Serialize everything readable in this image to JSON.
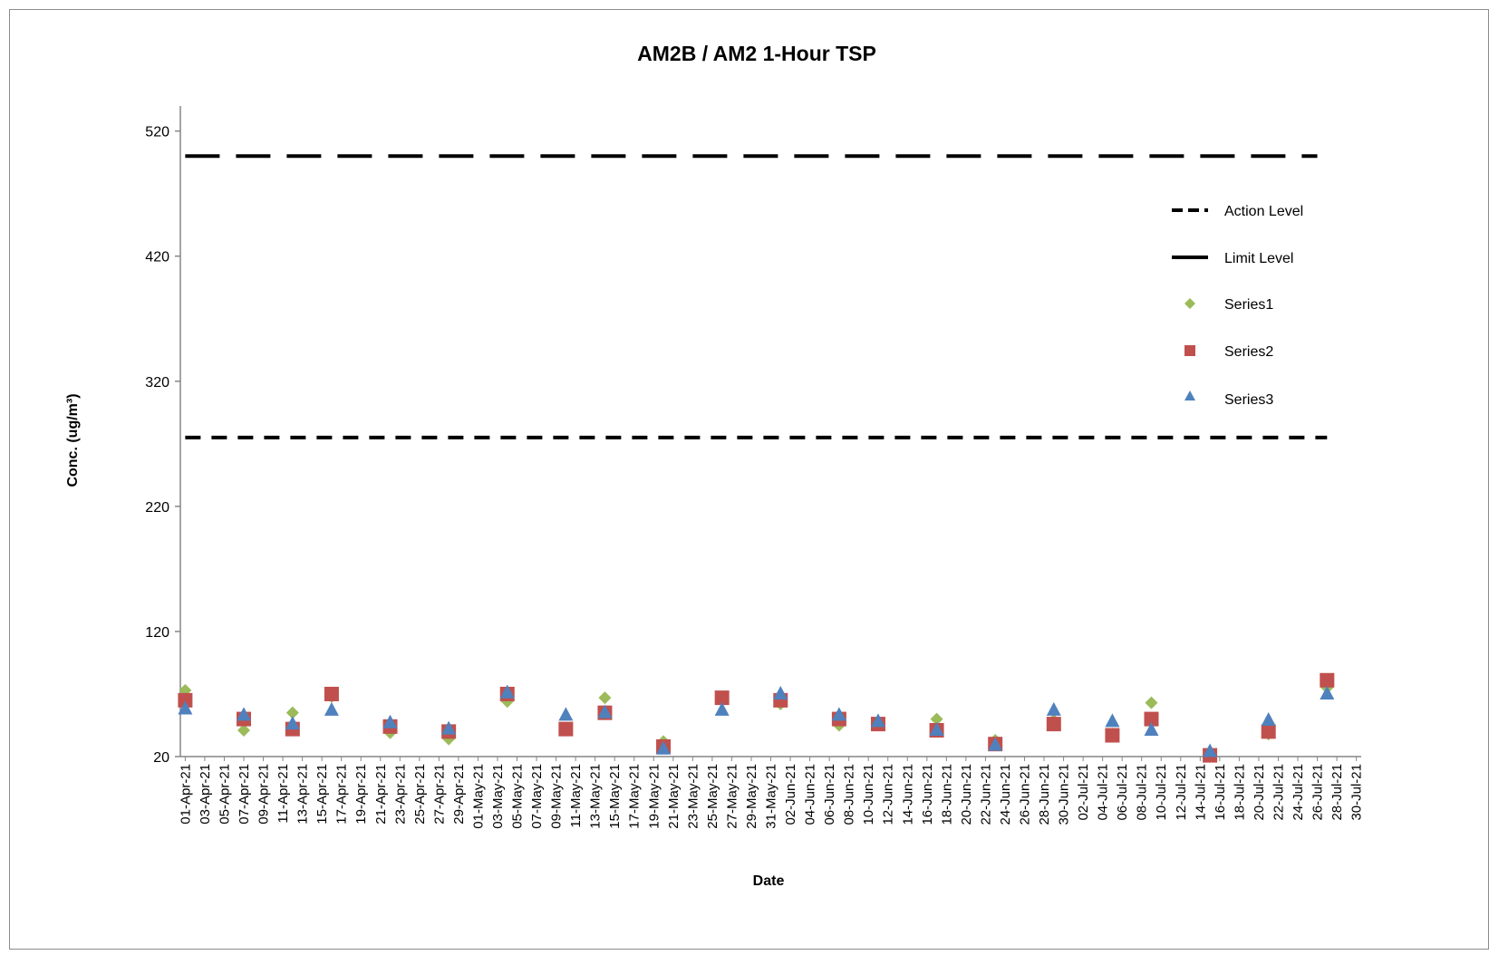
{
  "chart_data": {
    "type": "scatter",
    "title": "AM2B / AM2 1-Hour TSP",
    "xlabel": "Date",
    "ylabel": "Conc. (ug/m³)",
    "ylim": [
      20,
      540
    ],
    "yticks": [
      20,
      120,
      220,
      320,
      420,
      520
    ],
    "grid": false,
    "legend_position": "right",
    "x_tick_labels": [
      "01-Apr-21",
      "03-Apr-21",
      "05-Apr-21",
      "07-Apr-21",
      "09-Apr-21",
      "11-Apr-21",
      "13-Apr-21",
      "15-Apr-21",
      "17-Apr-21",
      "19-Apr-21",
      "21-Apr-21",
      "23-Apr-21",
      "25-Apr-21",
      "27-Apr-21",
      "29-Apr-21",
      "01-May-21",
      "03-May-21",
      "05-May-21",
      "07-May-21",
      "09-May-21",
      "11-May-21",
      "13-May-21",
      "15-May-21",
      "17-May-21",
      "19-May-21",
      "21-May-21",
      "23-May-21",
      "25-May-21",
      "27-May-21",
      "29-May-21",
      "31-May-21",
      "02-Jun-21",
      "04-Jun-21",
      "06-Jun-21",
      "08-Jun-21",
      "10-Jun-21",
      "12-Jun-21",
      "14-Jun-21",
      "16-Jun-21",
      "18-Jun-21",
      "20-Jun-21",
      "22-Jun-21",
      "24-Jun-21",
      "26-Jun-21",
      "28-Jun-21",
      "30-Jun-21",
      "02-Jul-21",
      "04-Jul-21",
      "06-Jul-21",
      "08-Jul-21",
      "10-Jul-21",
      "12-Jul-21",
      "14-Jul-21",
      "16-Jul-21",
      "18-Jul-21",
      "20-Jul-21",
      "22-Jul-21",
      "24-Jul-21",
      "26-Jul-21",
      "28-Jul-21",
      "30-Jul-21"
    ],
    "x_range": [
      "2021-04-01",
      "2021-07-31"
    ],
    "action_level": {
      "name": "Action Level",
      "y": 275,
      "from": "2021-04-01",
      "to": "2021-07-27",
      "color": "#000000"
    },
    "limit_level": {
      "name": "Limit Level",
      "y": 500,
      "from": "2021-04-01",
      "to": "2021-07-26",
      "color": "#000000"
    },
    "series": [
      {
        "name": "Series1",
        "marker": "diamond",
        "color": "#9bbb59",
        "x": [
          "2021-04-01",
          "2021-04-07",
          "2021-04-12",
          "2021-04-16",
          "2021-04-22",
          "2021-04-28",
          "2021-05-04",
          "2021-05-10",
          "2021-05-14",
          "2021-05-20",
          "2021-05-26",
          "2021-06-01",
          "2021-06-07",
          "2021-06-11",
          "2021-06-17",
          "2021-06-23",
          "2021-06-29",
          "2021-07-05",
          "2021-07-09",
          "2021-07-15",
          "2021-07-21",
          "2021-07-27"
        ],
        "values": [
          73,
          41,
          55,
          68,
          39,
          34,
          64,
          41,
          67,
          32,
          67,
          62,
          45,
          48,
          50,
          33,
          49,
          38,
          63,
          21,
          38,
          75
        ]
      },
      {
        "name": "Series2",
        "marker": "square",
        "color": "#c0504d",
        "x": [
          "2021-04-01",
          "2021-04-07",
          "2021-04-12",
          "2021-04-16",
          "2021-04-22",
          "2021-04-28",
          "2021-05-04",
          "2021-05-10",
          "2021-05-14",
          "2021-05-20",
          "2021-05-26",
          "2021-06-01",
          "2021-06-07",
          "2021-06-11",
          "2021-06-17",
          "2021-06-23",
          "2021-06-29",
          "2021-07-05",
          "2021-07-09",
          "2021-07-15",
          "2021-07-21",
          "2021-07-27"
        ],
        "values": [
          65,
          50,
          42,
          70,
          44,
          40,
          70,
          42,
          55,
          28,
          67,
          65,
          50,
          46,
          41,
          30,
          46,
          37,
          50,
          21,
          40,
          81
        ]
      },
      {
        "name": "Series3",
        "marker": "triangle",
        "color": "#4f81bd",
        "x": [
          "2021-04-01",
          "2021-04-07",
          "2021-04-12",
          "2021-04-16",
          "2021-04-22",
          "2021-04-28",
          "2021-05-04",
          "2021-05-10",
          "2021-05-14",
          "2021-05-20",
          "2021-05-26",
          "2021-06-01",
          "2021-06-07",
          "2021-06-11",
          "2021-06-17",
          "2021-06-23",
          "2021-06-29",
          "2021-07-05",
          "2021-07-09",
          "2021-07-15",
          "2021-07-21",
          "2021-07-27"
        ],
        "values": [
          58,
          53,
          46,
          57,
          47,
          42,
          71,
          53,
          55,
          26,
          57,
          70,
          53,
          48,
          41,
          29,
          57,
          48,
          41,
          24,
          49,
          70
        ]
      }
    ]
  }
}
